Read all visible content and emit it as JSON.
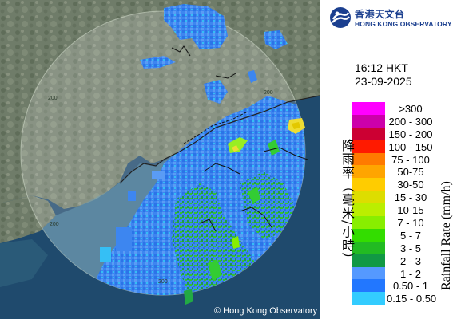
{
  "logo": {
    "name_zh": "香港天文台",
    "name_en": "HONG KONG OBSERVATORY"
  },
  "map": {
    "range_rings": [
      "200",
      "200",
      "200",
      "200"
    ],
    "copyright": "© Hong Kong Observatory"
  },
  "timestamp": {
    "time": "16:12 HKT",
    "date": "23-09-2025"
  },
  "legend": {
    "title_zh": "降雨率（毫米/小時）",
    "title_en": "Rainfall Rate (mm/h)",
    "items": [
      {
        "label": ">300",
        "color": "#ff00ff"
      },
      {
        "label": "200 - 300",
        "color": "#cc00aa"
      },
      {
        "label": "150 - 200",
        "color": "#cc0033"
      },
      {
        "label": "100 - 150",
        "color": "#ff1a00"
      },
      {
        "label": "75 - 100",
        "color": "#ff7a00"
      },
      {
        "label": "50-75",
        "color": "#ffa500"
      },
      {
        "label": "30-50",
        "color": "#ffcc00"
      },
      {
        "label": "15 - 30",
        "color": "#dddd00"
      },
      {
        "label": "10-15",
        "color": "#bbee00"
      },
      {
        "label": "7 - 10",
        "color": "#88ee00"
      },
      {
        "label": "5 - 7",
        "color": "#33dd00"
      },
      {
        "label": "3 - 5",
        "color": "#22bb22"
      },
      {
        "label": "2 - 3",
        "color": "#119944"
      },
      {
        "label": "1 - 2",
        "color": "#5599ff"
      },
      {
        "label": "0.50 - 1",
        "color": "#2277ff"
      },
      {
        "label": "0.15 - 0.50",
        "color": "#33ccff"
      }
    ]
  }
}
